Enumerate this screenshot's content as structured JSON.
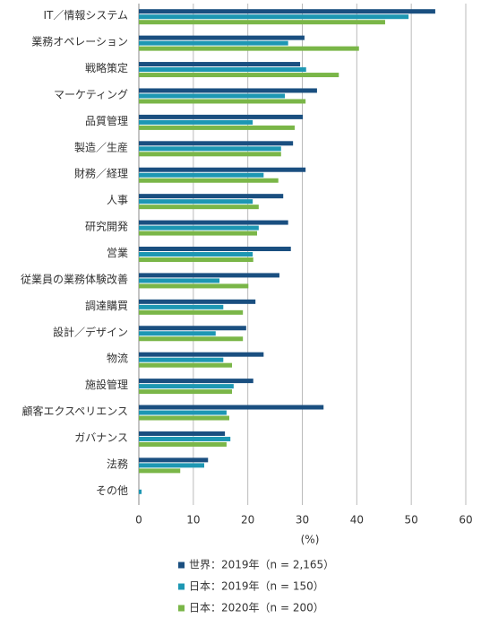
{
  "chart_data": {
    "type": "barh",
    "categories": [
      "IT／情報システム",
      "業務オペレーション",
      "戦略策定",
      "マーケティング",
      "品質管理",
      "製造／生産",
      "財務／経理",
      "人事",
      "研究開発",
      "営業",
      "従業員の業務体験改善",
      "調達購買",
      "設計／デザイン",
      "物流",
      "施設管理",
      "顧客エクスペリエンス",
      "ガバナンス",
      "法務",
      "その他"
    ],
    "series": [
      {
        "name": "世界：2019年（n = 2,165）",
        "color": "#1a4f80",
        "values": [
          54.4,
          30.4,
          29.6,
          32.7,
          30.1,
          28.3,
          30.6,
          26.5,
          27.4,
          27.9,
          25.8,
          21.4,
          19.7,
          22.9,
          21.0,
          33.9,
          15.8,
          12.7,
          0
        ]
      },
      {
        "name": "日本：2019年（n = 150）",
        "color": "#1d97b3",
        "values": [
          49.5,
          27.4,
          30.7,
          26.8,
          20.9,
          26.1,
          22.9,
          20.9,
          22.0,
          20.9,
          14.8,
          15.5,
          14.1,
          15.5,
          17.4,
          16.1,
          16.8,
          12.0,
          0.5
        ]
      },
      {
        "name": "日本：2020年（n = 200）",
        "color": "#7ab648",
        "values": [
          45.2,
          40.4,
          36.7,
          30.6,
          28.6,
          26.1,
          25.6,
          22.0,
          21.7,
          21.0,
          20.1,
          19.1,
          19.1,
          17.1,
          17.1,
          16.6,
          16.1,
          7.6,
          0
        ]
      }
    ],
    "xlabel": "(%)",
    "xlim": [
      0,
      60
    ],
    "xticks": [
      0,
      10,
      20,
      30,
      40,
      50,
      60
    ],
    "grid": true
  }
}
